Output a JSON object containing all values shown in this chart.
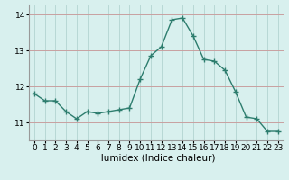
{
  "x": [
    0,
    1,
    2,
    3,
    4,
    5,
    6,
    7,
    8,
    9,
    10,
    11,
    12,
    13,
    14,
    15,
    16,
    17,
    18,
    19,
    20,
    21,
    22,
    23
  ],
  "y": [
    11.8,
    11.6,
    11.6,
    11.3,
    11.1,
    11.3,
    11.25,
    11.3,
    11.35,
    11.4,
    12.2,
    12.85,
    13.1,
    13.85,
    13.9,
    13.4,
    12.75,
    12.7,
    12.45,
    11.85,
    11.15,
    11.1,
    10.75,
    10.75
  ],
  "line_color": "#2d7d6e",
  "marker": "+",
  "marker_size": 4,
  "marker_linewidth": 1.0,
  "bg_color": "#d8f0ee",
  "grid_color_h": "#c8a0a0",
  "grid_color_v": "#b8d8d5",
  "xlabel": "Humidex (Indice chaleur)",
  "xlabel_fontsize": 7.5,
  "xlim": [
    -0.5,
    23.5
  ],
  "ylim": [
    10.5,
    14.25
  ],
  "yticks": [
    11,
    12,
    13,
    14
  ],
  "xticks": [
    0,
    1,
    2,
    3,
    4,
    5,
    6,
    7,
    8,
    9,
    10,
    11,
    12,
    13,
    14,
    15,
    16,
    17,
    18,
    19,
    20,
    21,
    22,
    23
  ],
  "tick_fontsize": 6.5,
  "line_width": 1.0
}
